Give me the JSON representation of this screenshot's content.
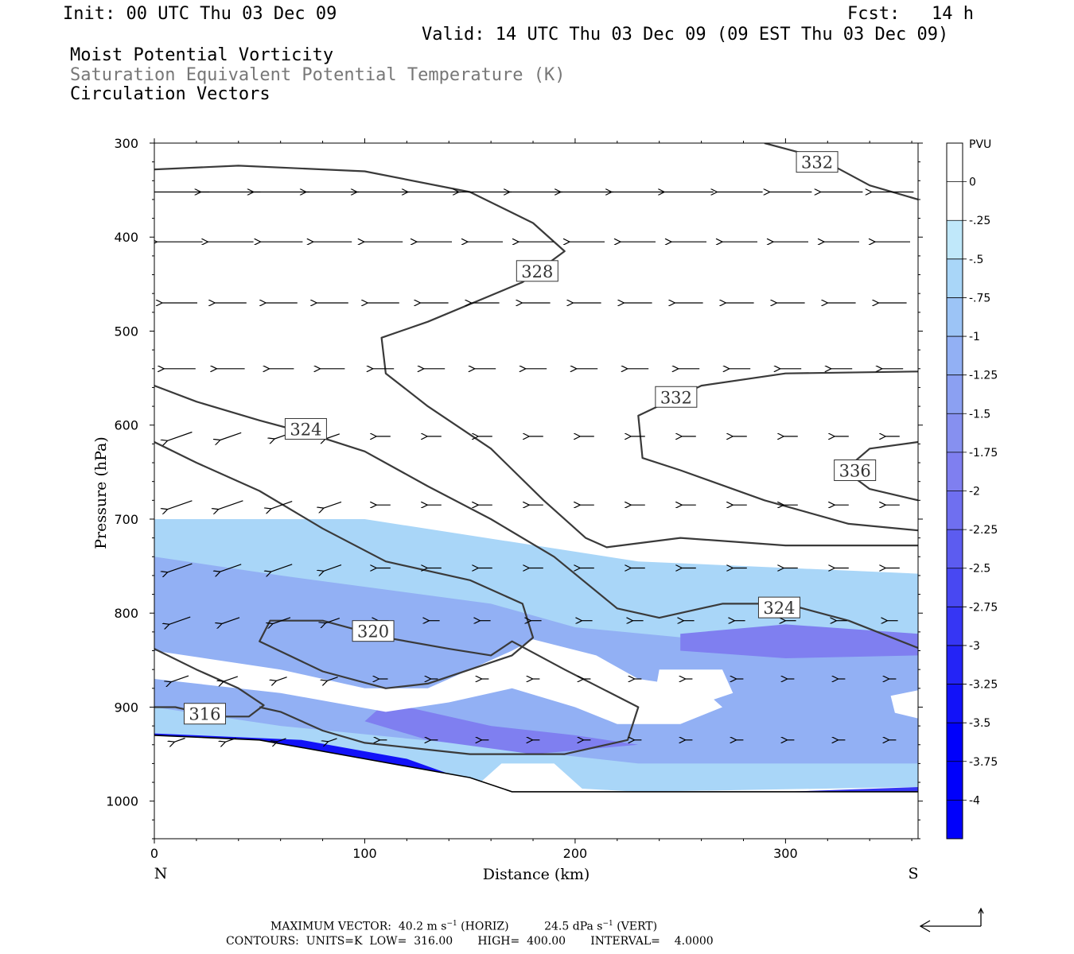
{
  "header": {
    "init": "Init: 00 UTC Thu 03 Dec 09",
    "fcst": "Fcst:   14 h",
    "valid": "Valid: 14 UTC Thu 03 Dec 09 (09 EST Thu 03 Dec 09)",
    "field1": "Moist Potential Vorticity",
    "field2": "Saturation Equivalent Potential Temperature (K)",
    "field3": "Circulation Vectors"
  },
  "footer": {
    "max_vector_label": "MAXIMUM VECTOR:",
    "max_horiz": "40.2 m s",
    "horiz_unit": "(HORIZ)",
    "max_vert": "24.5 dPa s",
    "vert_unit": "(VERT)",
    "contours": "CONTOURS:  UNITS=K  LOW=  316.00       HIGH=  400.00       INTERVAL=    4.0000"
  },
  "colors": {
    "contour": "#3a3a3a",
    "pv_shades": [
      "#c0e8fa",
      "#a9d6f8",
      "#9cc4f6",
      "#92b0f4",
      "#8ba0f2",
      "#8690f0",
      "#7f7ff0",
      "#6f6ff0",
      "#5c5cf0",
      "#4848f2",
      "#3636f4",
      "#2424f6",
      "#1212f8",
      "#0000fb"
    ]
  },
  "chart_data": {
    "type": "contour",
    "xlabel": "Distance (km)",
    "ylabel": "Pressure (hPa)",
    "xlim": [
      0,
      363
    ],
    "ylim": [
      1040,
      300
    ],
    "x_ticks": [
      0,
      100,
      200,
      300
    ],
    "y_ticks": [
      300,
      400,
      500,
      600,
      700,
      800,
      900,
      1000
    ],
    "x_end_labels": {
      "left": "N",
      "right": "S"
    },
    "colorbar": {
      "title": "PVU",
      "levels": [
        "0",
        "-.25",
        "-.5",
        "-.75",
        "-1",
        "-1.25",
        "-1.5",
        "-1.75",
        "-2",
        "-2.25",
        "-2.5",
        "-2.75",
        "-3",
        "-3.25",
        "-3.5",
        "-3.75",
        "-4"
      ]
    },
    "contour_labels": [
      {
        "value": "332",
        "x": 315,
        "p": 320
      },
      {
        "value": "328",
        "x": 182,
        "p": 436
      },
      {
        "value": "332",
        "x": 248,
        "p": 570
      },
      {
        "value": "324",
        "x": 72,
        "p": 604
      },
      {
        "value": "336",
        "x": 333,
        "p": 648
      },
      {
        "value": "324",
        "x": 297,
        "p": 794
      },
      {
        "value": "320",
        "x": 104,
        "p": 819
      },
      {
        "value": "316",
        "x": 24,
        "p": 907
      }
    ],
    "contours": [
      {
        "level": 332,
        "points": [
          [
            290,
            300
          ],
          [
            315,
            315
          ],
          [
            340,
            345
          ],
          [
            363,
            360
          ]
        ]
      },
      {
        "level": 328,
        "points": [
          [
            0,
            328
          ],
          [
            40,
            324
          ],
          [
            100,
            330
          ],
          [
            150,
            352
          ],
          [
            180,
            385
          ],
          [
            195,
            415
          ],
          [
            175,
            448
          ],
          [
            130,
            490
          ],
          [
            108,
            507
          ],
          [
            110,
            545
          ],
          [
            130,
            580
          ],
          [
            160,
            625
          ],
          [
            185,
            680
          ],
          [
            205,
            720
          ],
          [
            215,
            730
          ],
          [
            250,
            720
          ],
          [
            300,
            728
          ],
          [
            363,
            728
          ]
        ]
      },
      {
        "level": 332,
        "points": [
          [
            363,
            543
          ],
          [
            300,
            545
          ],
          [
            260,
            558
          ],
          [
            230,
            590
          ],
          [
            232,
            635
          ],
          [
            250,
            648
          ],
          [
            290,
            680
          ],
          [
            330,
            705
          ],
          [
            363,
            712
          ]
        ]
      },
      {
        "level": 336,
        "points": [
          [
            363,
            618
          ],
          [
            340,
            625
          ],
          [
            328,
            648
          ],
          [
            340,
            668
          ],
          [
            363,
            680
          ]
        ]
      },
      {
        "level": 324,
        "points": [
          [
            0,
            558
          ],
          [
            20,
            575
          ],
          [
            50,
            595
          ],
          [
            75,
            610
          ],
          [
            100,
            628
          ],
          [
            130,
            665
          ],
          [
            160,
            700
          ],
          [
            190,
            740
          ],
          [
            220,
            795
          ],
          [
            240,
            805
          ],
          [
            270,
            790
          ],
          [
            300,
            790
          ],
          [
            330,
            808
          ],
          [
            363,
            837
          ]
        ]
      },
      {
        "level": 320,
        "points": [
          [
            0,
            618
          ],
          [
            20,
            640
          ],
          [
            50,
            670
          ],
          [
            80,
            710
          ],
          [
            110,
            745
          ],
          [
            150,
            765
          ],
          [
            175,
            790
          ],
          [
            180,
            826
          ],
          [
            170,
            845
          ],
          [
            150,
            860
          ],
          [
            130,
            875
          ],
          [
            110,
            880
          ],
          [
            80,
            862
          ],
          [
            50,
            830
          ],
          [
            55,
            808
          ],
          [
            80,
            808
          ],
          [
            110,
            826
          ],
          [
            140,
            838
          ],
          [
            160,
            845
          ],
          [
            170,
            830
          ],
          [
            195,
            860
          ],
          [
            230,
            900
          ],
          [
            225,
            935
          ],
          [
            195,
            950
          ],
          [
            150,
            950
          ],
          [
            100,
            938
          ],
          [
            80,
            925
          ],
          [
            60,
            905
          ],
          [
            50,
            900
          ]
        ]
      },
      {
        "level": 316,
        "points": [
          [
            0,
            838
          ],
          [
            20,
            860
          ],
          [
            40,
            880
          ],
          [
            52,
            898
          ],
          [
            45,
            910
          ],
          [
            30,
            910
          ],
          [
            10,
            900
          ],
          [
            0,
            900
          ]
        ]
      }
    ],
    "terrain_top": [
      [
        0,
        930
      ],
      [
        50,
        935
      ],
      [
        100,
        955
      ],
      [
        150,
        975
      ],
      [
        170,
        990
      ],
      [
        250,
        990
      ],
      [
        363,
        990
      ]
    ],
    "pv_regions": [
      {
        "level": 1,
        "points": [
          [
            0,
            700
          ],
          [
            100,
            700
          ],
          [
            230,
            745
          ],
          [
            363,
            758
          ],
          [
            363,
            985
          ],
          [
            230,
            990
          ],
          [
            150,
            980
          ],
          [
            100,
            965
          ],
          [
            0,
            930
          ]
        ]
      },
      {
        "level": 3,
        "points": [
          [
            0,
            740
          ],
          [
            60,
            760
          ],
          [
            160,
            790
          ],
          [
            200,
            815
          ],
          [
            270,
            830
          ],
          [
            363,
            830
          ],
          [
            363,
            960
          ],
          [
            230,
            960
          ],
          [
            150,
            940
          ],
          [
            60,
            920
          ],
          [
            0,
            900
          ]
        ]
      },
      {
        "level": 6,
        "points": [
          [
            250,
            822
          ],
          [
            300,
            812
          ],
          [
            363,
            822
          ],
          [
            363,
            845
          ],
          [
            300,
            848
          ],
          [
            250,
            840
          ]
        ]
      },
      {
        "level": 6,
        "points": [
          [
            110,
            895
          ],
          [
            160,
            920
          ],
          [
            200,
            930
          ],
          [
            230,
            940
          ],
          [
            180,
            950
          ],
          [
            130,
            935
          ],
          [
            100,
            915
          ]
        ]
      },
      {
        "level": 12,
        "points": [
          [
            0,
            928
          ],
          [
            70,
            935
          ],
          [
            120,
            955
          ],
          [
            145,
            975
          ],
          [
            130,
            982
          ],
          [
            90,
            965
          ],
          [
            40,
            945
          ],
          [
            0,
            940
          ]
        ]
      },
      {
        "level": 10,
        "points": [
          [
            300,
            990
          ],
          [
            363,
            985
          ],
          [
            363,
            998
          ],
          [
            300,
            996
          ]
        ]
      }
    ],
    "pv_holes": [
      {
        "points": [
          [
            0,
            840
          ],
          [
            60,
            860
          ],
          [
            100,
            880
          ],
          [
            130,
            880
          ],
          [
            150,
            860
          ],
          [
            170,
            840
          ],
          [
            180,
            828
          ],
          [
            210,
            845
          ],
          [
            230,
            870
          ],
          [
            260,
            880
          ],
          [
            270,
            900
          ],
          [
            250,
            918
          ],
          [
            220,
            918
          ],
          [
            200,
            900
          ],
          [
            170,
            880
          ],
          [
            140,
            895
          ],
          [
            110,
            905
          ],
          [
            60,
            885
          ],
          [
            0,
            870
          ]
        ]
      },
      {
        "points": [
          [
            240,
            860
          ],
          [
            270,
            860
          ],
          [
            275,
            885
          ],
          [
            255,
            900
          ],
          [
            238,
            885
          ]
        ]
      },
      {
        "points": [
          [
            165,
            960
          ],
          [
            190,
            960
          ],
          [
            205,
            990
          ],
          [
            170,
            995
          ],
          [
            150,
            990
          ]
        ]
      },
      {
        "points": [
          [
            350,
            888
          ],
          [
            363,
            882
          ],
          [
            363,
            912
          ],
          [
            352,
            906
          ]
        ]
      }
    ],
    "vectors_note": "Circulation vectors are drawn from the picture as a field of arrows.",
    "vectors": [
      {
        "p": 352,
        "u": [
          -34,
          -34,
          -32,
          -30,
          -30,
          -30,
          -30,
          -30,
          -30,
          -30,
          -28,
          -26,
          -24,
          -24,
          -24
        ]
      },
      {
        "p": 405,
        "u": [
          -26,
          -26,
          -24,
          -22,
          -22,
          -20,
          -20,
          -20,
          -20,
          -20,
          -20,
          -20,
          -20,
          -20,
          -20
        ]
      },
      {
        "p": 470,
        "u": [
          -20,
          -18,
          -18,
          -18,
          -18,
          -16,
          -16,
          -16,
          -16,
          -16,
          -16,
          -16,
          -16,
          -16,
          -16
        ]
      },
      {
        "p": 540,
        "u": [
          -18,
          -16,
          -14,
          -14,
          -12,
          -12,
          -12,
          -12,
          -12,
          -12,
          -12,
          -12,
          -12,
          -12,
          -12
        ]
      },
      {
        "p": 612,
        "u": [
          -14,
          -12,
          -8,
          -8,
          -8,
          -8,
          -8,
          -8,
          -8,
          -8,
          -8,
          -8,
          -8,
          -8,
          -8
        ]
      },
      {
        "p": 685,
        "u": [
          -14,
          -14,
          -12,
          -10,
          -8,
          -8,
          -8,
          -8,
          -8,
          -8,
          -8,
          -8,
          -8,
          -8,
          -8
        ]
      },
      {
        "p": 752,
        "u": [
          -14,
          -12,
          -12,
          -10,
          -8,
          -8,
          -8,
          -8,
          -8,
          -8,
          -8,
          -8,
          -8,
          -8,
          -8
        ]
      },
      {
        "p": 808,
        "u": [
          -12,
          -10,
          -10,
          -8,
          -6,
          -6,
          -6,
          -6,
          -6,
          -6,
          -6,
          -6,
          -6,
          -6,
          -6
        ]
      },
      {
        "p": 870,
        "u": [
          -10,
          -8,
          -6,
          -6,
          -5,
          -4,
          -4,
          -4,
          -4,
          -4,
          -4,
          -4,
          -4,
          -4,
          -4
        ]
      },
      {
        "p": 935,
        "u": [
          -6,
          -6,
          -5,
          -5,
          -4,
          -4,
          -4,
          -4,
          -4,
          -4,
          -4,
          -4,
          -4,
          -4,
          -4
        ]
      }
    ]
  }
}
